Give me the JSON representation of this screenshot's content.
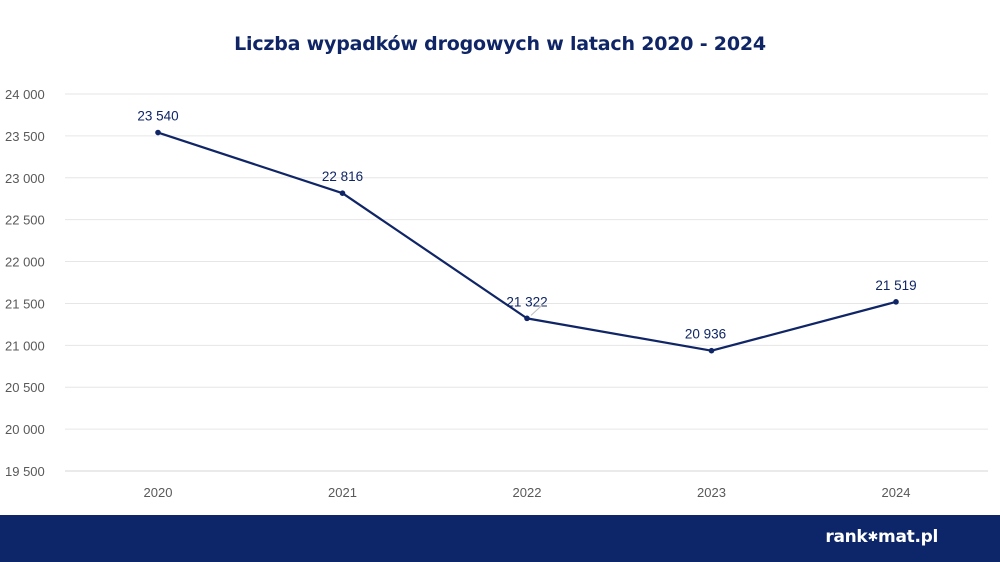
{
  "chart_data": {
    "type": "line",
    "title": "Liczba wypadków drogowych w latach 2020 - 2024",
    "categories": [
      "2020",
      "2021",
      "2022",
      "2023",
      "2024"
    ],
    "values": [
      23540,
      22816,
      21322,
      20936,
      21519
    ],
    "value_labels": [
      "23 540",
      "22 816",
      "21 322",
      "20 936",
      "21 519"
    ],
    "y_ticks": [
      "24 000",
      "23 500",
      "23 000",
      "22 500",
      "22 000",
      "21 500",
      "21 000",
      "20 500",
      "20 000",
      "19 500"
    ],
    "ylim": [
      19500,
      24000
    ],
    "grid": true,
    "line_color": "#0f2566"
  },
  "footer": {
    "logo_part1": "rank",
    "logo_mark": "✱",
    "logo_part2": "mat.pl",
    "background": "#0c2669"
  }
}
